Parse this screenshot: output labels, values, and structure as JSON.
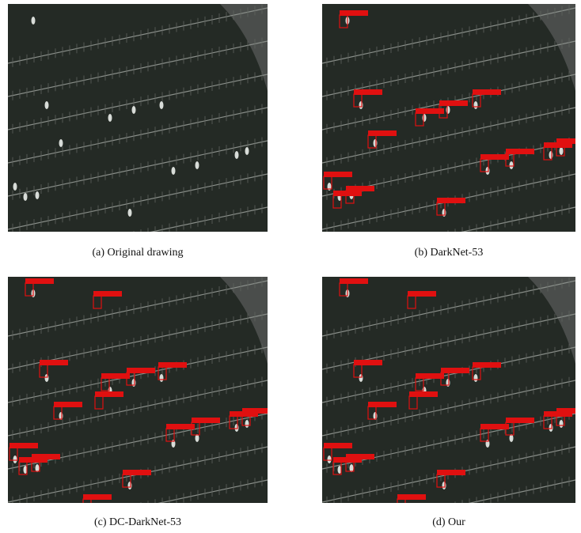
{
  "figure": {
    "panels": [
      {
        "caption": "(a) Original drawing"
      },
      {
        "caption": "(b) DarkNet-53"
      },
      {
        "caption": "(c) DC-DarkNet-53"
      },
      {
        "caption": "(d) Our"
      }
    ]
  }
}
